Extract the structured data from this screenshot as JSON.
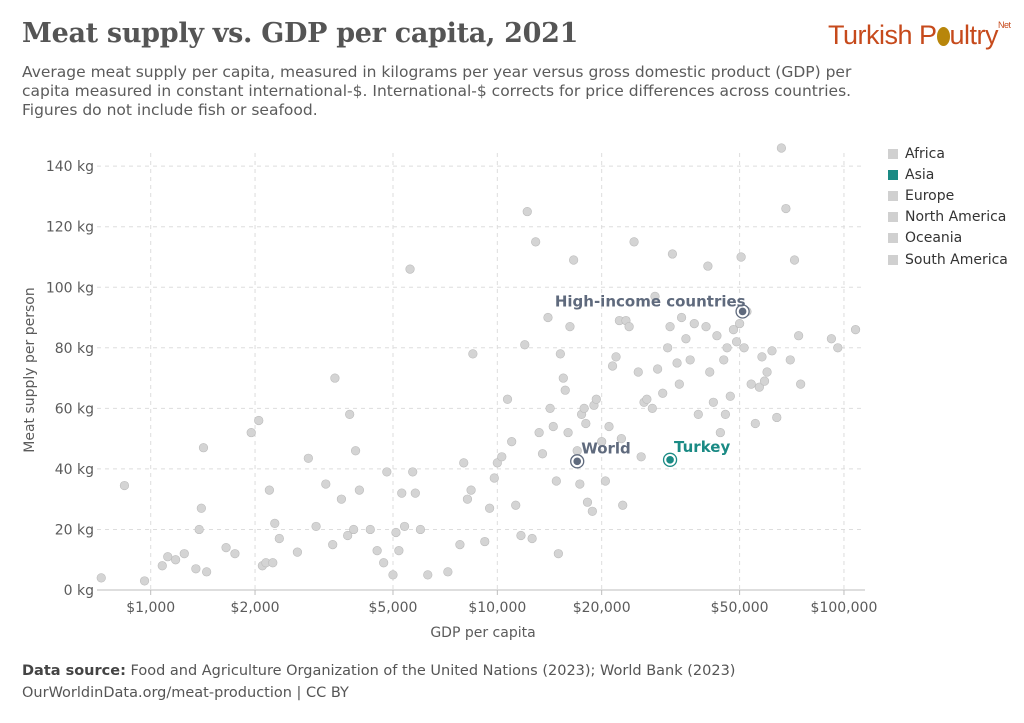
{
  "header": {
    "title": "Meat supply vs. GDP per capita, 2021",
    "subtitle": "Average meat supply per capita, measured in kilograms per year versus gross domestic product (GDP) per capita measured in constant international-$. International-$ corrects for price differences across countries. Figures do not include fish or seafood.",
    "logo_left": "Turkish P",
    "logo_right": "ultry",
    "logo_suffix": "Net"
  },
  "footer": {
    "source_label": "Data source:",
    "source_text": " Food and Agriculture Organization of the United Nations (2023); World Bank (2023)",
    "url_text": "OurWorldinData.org/meat-production | CC BY"
  },
  "colors": {
    "default_point": "#d4d4d4",
    "highlight": "#1a8a84",
    "aggregate": "#5f6a7d",
    "grid": "#dddddd"
  },
  "chart_data": {
    "type": "scatter",
    "x_scale": "log",
    "xlabel": "GDP per capita",
    "ylabel": "Meat supply per person",
    "xlim": [
      700,
      115000
    ],
    "ylim": [
      0,
      146
    ],
    "x_ticks": [
      {
        "value": 1000,
        "label": "$1,000"
      },
      {
        "value": 2000,
        "label": "$2,000"
      },
      {
        "value": 5000,
        "label": "$5,000"
      },
      {
        "value": 10000,
        "label": "$10,000"
      },
      {
        "value": 20000,
        "label": "$20,000"
      },
      {
        "value": 50000,
        "label": "$50,000"
      },
      {
        "value": 100000,
        "label": "$100,000"
      }
    ],
    "y_ticks": [
      {
        "value": 0,
        "label": "0 kg"
      },
      {
        "value": 20,
        "label": "20 kg"
      },
      {
        "value": 40,
        "label": "40 kg"
      },
      {
        "value": 60,
        "label": "60 kg"
      },
      {
        "value": 80,
        "label": "80 kg"
      },
      {
        "value": 100,
        "label": "100 kg"
      },
      {
        "value": 120,
        "label": "120 kg"
      },
      {
        "value": 140,
        "label": "140 kg"
      }
    ],
    "grid": true,
    "legend": {
      "position": "right",
      "items": [
        {
          "name": "Africa",
          "color": "#d0d0d0"
        },
        {
          "name": "Asia",
          "color": "#1a8a84"
        },
        {
          "name": "Europe",
          "color": "#d0d0d0"
        },
        {
          "name": "North America",
          "color": "#d0d0d0"
        },
        {
          "name": "Oceania",
          "color": "#d0d0d0"
        },
        {
          "name": "South America",
          "color": "#d0d0d0"
        }
      ]
    },
    "labeled_points": [
      {
        "name": "High-income countries",
        "x": 51000,
        "y": 92,
        "kind": "aggregate"
      },
      {
        "name": "World",
        "x": 17000,
        "y": 42.5,
        "kind": "aggregate"
      },
      {
        "name": "Turkey",
        "x": 31500,
        "y": 43,
        "kind": "highlight"
      }
    ],
    "points": [
      [
        720,
        4
      ],
      [
        840,
        34.5
      ],
      [
        960,
        3
      ],
      [
        1080,
        8
      ],
      [
        1120,
        11
      ],
      [
        1180,
        10
      ],
      [
        1250,
        12
      ],
      [
        1350,
        7
      ],
      [
        1380,
        20
      ],
      [
        1400,
        27
      ],
      [
        1420,
        47
      ],
      [
        1450,
        6
      ],
      [
        1650,
        14
      ],
      [
        1750,
        12
      ],
      [
        1950,
        52
      ],
      [
        2050,
        56
      ],
      [
        2100,
        8
      ],
      [
        2150,
        9
      ],
      [
        2200,
        33
      ],
      [
        2250,
        9
      ],
      [
        2280,
        22
      ],
      [
        2350,
        17
      ],
      [
        2650,
        12.5
      ],
      [
        2850,
        43.5
      ],
      [
        3000,
        21
      ],
      [
        3200,
        35
      ],
      [
        3350,
        15
      ],
      [
        3400,
        70
      ],
      [
        3550,
        30
      ],
      [
        3700,
        18
      ],
      [
        3750,
        58
      ],
      [
        3850,
        20
      ],
      [
        3900,
        46
      ],
      [
        4000,
        33
      ],
      [
        4300,
        20
      ],
      [
        4500,
        13
      ],
      [
        4700,
        9
      ],
      [
        4800,
        39
      ],
      [
        5000,
        5
      ],
      [
        5100,
        19
      ],
      [
        5200,
        13
      ],
      [
        5300,
        32
      ],
      [
        5400,
        21
      ],
      [
        5600,
        106
      ],
      [
        5700,
        39
      ],
      [
        5800,
        32
      ],
      [
        6000,
        20
      ],
      [
        6300,
        5
      ],
      [
        7200,
        6
      ],
      [
        7800,
        15
      ],
      [
        8000,
        42
      ],
      [
        8200,
        30
      ],
      [
        8400,
        33
      ],
      [
        8500,
        78
      ],
      [
        9200,
        16
      ],
      [
        9500,
        27
      ],
      [
        9800,
        37
      ],
      [
        10000,
        42
      ],
      [
        10300,
        44
      ],
      [
        10700,
        63
      ],
      [
        11000,
        49
      ],
      [
        11300,
        28
      ],
      [
        11700,
        18
      ],
      [
        12000,
        81
      ],
      [
        12200,
        125
      ],
      [
        12600,
        17
      ],
      [
        12900,
        115
      ],
      [
        13200,
        52
      ],
      [
        13500,
        45
      ],
      [
        14000,
        90
      ],
      [
        14200,
        60
      ],
      [
        14500,
        54
      ],
      [
        14800,
        36
      ],
      [
        15000,
        12
      ],
      [
        15200,
        78
      ],
      [
        15500,
        70
      ],
      [
        15700,
        66
      ],
      [
        16000,
        52
      ],
      [
        16200,
        87
      ],
      [
        16600,
        109
      ],
      [
        17000,
        46
      ],
      [
        17300,
        35
      ],
      [
        17500,
        58
      ],
      [
        17800,
        60
      ],
      [
        18000,
        55
      ],
      [
        18200,
        29
      ],
      [
        18800,
        26
      ],
      [
        19000,
        61
      ],
      [
        19300,
        63
      ],
      [
        20000,
        49
      ],
      [
        20500,
        36
      ],
      [
        21000,
        54
      ],
      [
        21500,
        74
      ],
      [
        22000,
        77
      ],
      [
        22500,
        89
      ],
      [
        22800,
        50
      ],
      [
        23000,
        28
      ],
      [
        23500,
        89
      ],
      [
        24000,
        87
      ],
      [
        24800,
        115
      ],
      [
        25500,
        72
      ],
      [
        26000,
        44
      ],
      [
        26500,
        62
      ],
      [
        27000,
        63
      ],
      [
        28000,
        60
      ],
      [
        28500,
        97
      ],
      [
        29000,
        73
      ],
      [
        30000,
        65
      ],
      [
        31000,
        80
      ],
      [
        31500,
        87
      ],
      [
        32000,
        111
      ],
      [
        33000,
        75
      ],
      [
        33500,
        68
      ],
      [
        34000,
        90
      ],
      [
        35000,
        83
      ],
      [
        36000,
        76
      ],
      [
        37000,
        88
      ],
      [
        38000,
        58
      ],
      [
        40000,
        87
      ],
      [
        40500,
        107
      ],
      [
        41000,
        72
      ],
      [
        42000,
        62
      ],
      [
        43000,
        84
      ],
      [
        44000,
        52
      ],
      [
        45000,
        76
      ],
      [
        45500,
        58
      ],
      [
        46000,
        80
      ],
      [
        47000,
        64
      ],
      [
        48000,
        86
      ],
      [
        49000,
        82
      ],
      [
        50000,
        88
      ],
      [
        50500,
        110
      ],
      [
        51500,
        80
      ],
      [
        52500,
        92
      ],
      [
        54000,
        68
      ],
      [
        55500,
        55
      ],
      [
        57000,
        67
      ],
      [
        58000,
        77
      ],
      [
        59000,
        69
      ],
      [
        60000,
        72
      ],
      [
        62000,
        79
      ],
      [
        64000,
        57
      ],
      [
        66000,
        146
      ],
      [
        68000,
        126
      ],
      [
        70000,
        76
      ],
      [
        72000,
        109
      ],
      [
        74000,
        84
      ],
      [
        75000,
        68
      ],
      [
        92000,
        83
      ],
      [
        96000,
        80
      ],
      [
        108000,
        86
      ]
    ]
  }
}
